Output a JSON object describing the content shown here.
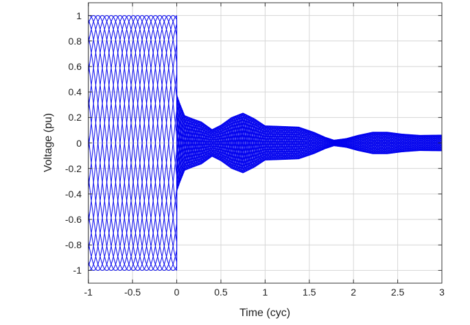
{
  "chart_data": {
    "type": "line",
    "title": "",
    "xlabel": "Time (cyc)",
    "ylabel": "Voltage (pu)",
    "xlim": [
      -1,
      3
    ],
    "ylim": [
      -1.1,
      1.1
    ],
    "xticks": [
      -1,
      -0.5,
      0,
      0.5,
      1,
      1.5,
      2,
      2.5,
      3
    ],
    "x_tick_labels": [
      "-1",
      "-0.5",
      "0",
      "0.5",
      "1",
      "1.5",
      "2",
      "2.5",
      "3"
    ],
    "yticks": [
      1,
      0.8,
      0.6,
      0.4,
      0.2,
      0,
      -0.2,
      -0.4,
      -0.6,
      -0.8,
      -1
    ],
    "y_tick_labels": [
      "1",
      "0.8",
      "0.6",
      "0.4",
      "0.2",
      "0",
      "-0.2",
      "-0.4",
      "-0.6",
      "-0.8",
      "-1"
    ],
    "grid": true,
    "legend": null,
    "line_color": "#0000ee",
    "grid_color": "#d6d6d6",
    "axis_color": "#333333",
    "tick_label_color": "#212121",
    "series_description": "Ensemble of point-on-wave voltage traces: unit-amplitude sinusoids for t<0; at t=0 all traces drop abruptly to a decaying oscillatory residual with beating (pinch/swell) envelope",
    "ensemble": {
      "num_traces": 20,
      "pre_event": {
        "amplitude": 1.0,
        "frequency_cyc": 1.0,
        "t_start": -1,
        "t_end": 0
      },
      "post_event": {
        "carrier_frequency_cyc": 4.5,
        "t_end": 3,
        "envelope": [
          [
            0.0,
            0.38
          ],
          [
            0.035,
            0.31
          ],
          [
            0.09,
            0.215
          ],
          [
            0.18,
            0.19
          ],
          [
            0.28,
            0.165
          ],
          [
            0.4,
            0.105
          ],
          [
            0.5,
            0.14
          ],
          [
            0.62,
            0.2
          ],
          [
            0.75,
            0.235
          ],
          [
            0.88,
            0.19
          ],
          [
            1.0,
            0.135
          ],
          [
            1.2,
            0.13
          ],
          [
            1.38,
            0.125
          ],
          [
            1.55,
            0.085
          ],
          [
            1.68,
            0.045
          ],
          [
            1.78,
            0.022
          ],
          [
            1.92,
            0.035
          ],
          [
            2.05,
            0.06
          ],
          [
            2.22,
            0.085
          ],
          [
            2.38,
            0.085
          ],
          [
            2.55,
            0.07
          ],
          [
            2.75,
            0.06
          ],
          [
            3.0,
            0.062
          ]
        ]
      }
    }
  }
}
